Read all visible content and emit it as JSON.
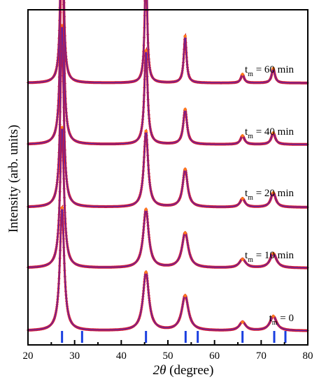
{
  "chart_data": {
    "type": "line",
    "xlabel_italic": "2θ",
    "xlabel_rest": " (degree)",
    "ylabel": "Intensity (arb. units)",
    "xlim": [
      20,
      80
    ],
    "x_ticks": [
      20,
      30,
      40,
      50,
      60,
      70,
      80
    ],
    "x_minor_ticks": [
      25,
      35,
      45,
      55,
      65,
      75
    ],
    "grid": false,
    "legend": "none",
    "colors": {
      "observed": "#cc1a3a",
      "calculated": "#2b2bd9",
      "reference_sticks": "#1a3fe0",
      "frame": "#000000"
    },
    "peaks": [
      {
        "two_theta": 27.3,
        "rel_height": [
          0.42,
          0.48,
          0.62,
          0.9,
          0.95
        ],
        "width": [
          0.55,
          0.5,
          0.42,
          0.34,
          0.28
        ]
      },
      {
        "two_theta": 45.3,
        "rel_height": [
          0.2,
          0.2,
          0.26,
          0.32,
          0.43
        ],
        "width": [
          0.75,
          0.7,
          0.55,
          0.42,
          0.3
        ]
      },
      {
        "two_theta": 53.7,
        "rel_height": [
          0.12,
          0.12,
          0.13,
          0.12,
          0.16
        ],
        "width": [
          0.85,
          0.8,
          0.62,
          0.48,
          0.35
        ]
      },
      {
        "two_theta": 66.0,
        "rel_height": [
          0.03,
          0.03,
          0.03,
          0.03,
          0.03
        ],
        "width": [
          0.8,
          0.8,
          0.6,
          0.5,
          0.4
        ]
      },
      {
        "two_theta": 72.6,
        "rel_height": [
          0.05,
          0.05,
          0.05,
          0.04,
          0.05
        ],
        "width": [
          0.85,
          0.8,
          0.62,
          0.5,
          0.4
        ]
      }
    ],
    "series": [
      {
        "name": "t_m = 0",
        "label_main": "t",
        "label_sub": "m",
        "label_rest": " = 0"
      },
      {
        "name": "t_m = 10 min",
        "label_main": "t",
        "label_sub": "m",
        "label_rest": " = 10 min"
      },
      {
        "name": "t_m = 20 min",
        "label_main": "t",
        "label_sub": "m",
        "label_rest": " = 20 min"
      },
      {
        "name": "t_m = 40 min",
        "label_main": "t",
        "label_sub": "m",
        "label_rest": " = 40 min"
      },
      {
        "name": "t_m = 60 min",
        "label_main": "t",
        "label_sub": "m",
        "label_rest": " = 60 min"
      }
    ],
    "reference_peaks_2theta": [
      27.3,
      31.6,
      45.3,
      53.8,
      56.4,
      66.0,
      72.8,
      75.2
    ]
  }
}
